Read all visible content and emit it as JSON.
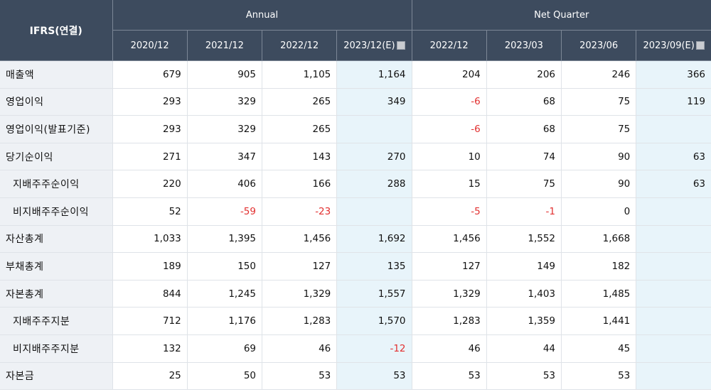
{
  "header": {
    "corner": "IFRS(연결)",
    "group_annual": "Annual",
    "group_quarter": "Net Quarter",
    "columns": [
      "2020/12",
      "2021/12",
      "2022/12",
      "2023/12(E)",
      "2022/12",
      "2023/03",
      "2023/06",
      "2023/09(E)"
    ],
    "estimate_columns": [
      3,
      7
    ],
    "estimate_icon": "info-icon"
  },
  "rows": [
    {
      "label": "매출액",
      "sub": false,
      "values": [
        "679",
        "905",
        "1,105",
        "1,164",
        "204",
        "206",
        "246",
        "366"
      ]
    },
    {
      "label": "영업이익",
      "sub": false,
      "values": [
        "293",
        "329",
        "265",
        "349",
        "-6",
        "68",
        "75",
        "119"
      ]
    },
    {
      "label": "영업이익(발표기준)",
      "sub": false,
      "values": [
        "293",
        "329",
        "265",
        "",
        "-6",
        "68",
        "75",
        ""
      ]
    },
    {
      "label": "당기순이익",
      "sub": false,
      "values": [
        "271",
        "347",
        "143",
        "270",
        "10",
        "74",
        "90",
        "63"
      ]
    },
    {
      "label": "지배주주순이익",
      "sub": true,
      "values": [
        "220",
        "406",
        "166",
        "288",
        "15",
        "75",
        "90",
        "63"
      ]
    },
    {
      "label": "비지배주주순이익",
      "sub": true,
      "values": [
        "52",
        "-59",
        "-23",
        "",
        "-5",
        "-1",
        "0",
        ""
      ]
    },
    {
      "label": "자산총계",
      "sub": false,
      "values": [
        "1,033",
        "1,395",
        "1,456",
        "1,692",
        "1,456",
        "1,552",
        "1,668",
        ""
      ]
    },
    {
      "label": "부채총계",
      "sub": false,
      "values": [
        "189",
        "150",
        "127",
        "135",
        "127",
        "149",
        "182",
        ""
      ]
    },
    {
      "label": "자본총계",
      "sub": false,
      "values": [
        "844",
        "1,245",
        "1,329",
        "1,557",
        "1,329",
        "1,403",
        "1,485",
        ""
      ]
    },
    {
      "label": "지배주주지분",
      "sub": true,
      "values": [
        "712",
        "1,176",
        "1,283",
        "1,570",
        "1,283",
        "1,359",
        "1,441",
        ""
      ]
    },
    {
      "label": "비지배주주지분",
      "sub": true,
      "values": [
        "132",
        "69",
        "46",
        "-12",
        "46",
        "44",
        "45",
        ""
      ]
    },
    {
      "label": "자본금",
      "sub": false,
      "values": [
        "25",
        "50",
        "53",
        "53",
        "53",
        "53",
        "53",
        ""
      ]
    }
  ],
  "colors": {
    "header_bg": "#3d4b5e",
    "label_bg": "#eef1f5",
    "estimate_bg": "#e8f4fa",
    "negative": "#e23030"
  }
}
